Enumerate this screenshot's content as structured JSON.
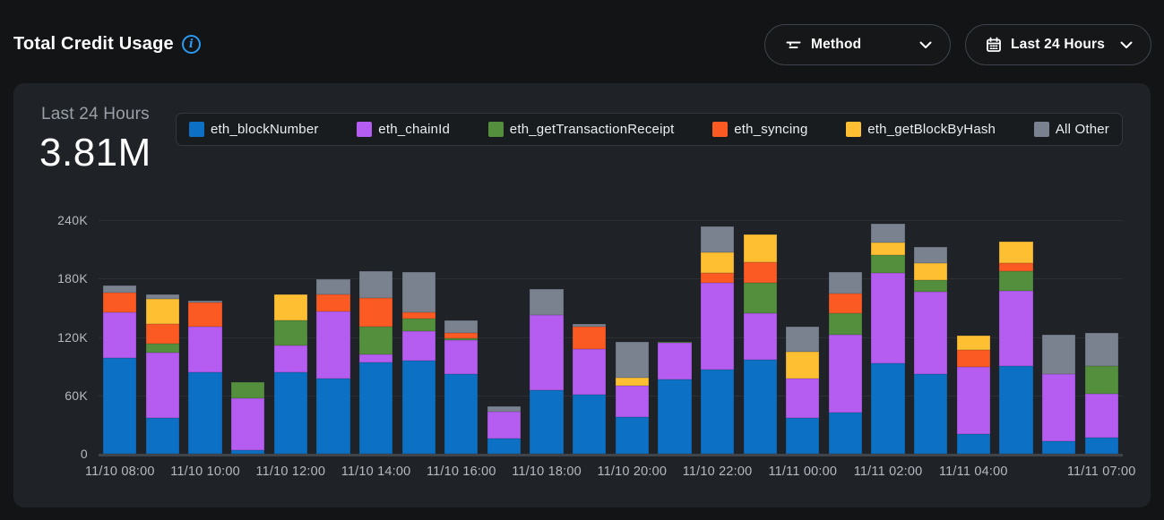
{
  "header": {
    "title": "Total Credit Usage",
    "info_icon": "info-circle-icon",
    "method_filter": {
      "label": "Method",
      "icon": "filter-icon"
    },
    "time_range": {
      "label": "Last 24 Hours",
      "icon": "calendar-icon"
    }
  },
  "card": {
    "period_label": "Last 24 Hours",
    "total_value": "3.81M"
  },
  "colors": {
    "page_background": "#121416",
    "card_background": "#1f2226",
    "accent_info": "#2b9af0",
    "axis_text": "#b6bac0",
    "gridline": "#2c3035"
  },
  "chart_data": {
    "type": "bar",
    "stacked": true,
    "title": "Total Credit Usage - Last 24 Hours",
    "unit": "credits (thousands)",
    "ylim": [
      0,
      240
    ],
    "grid": true,
    "legend_position": "top",
    "yticks": [
      {
        "value": 240,
        "label": "240K"
      },
      {
        "value": 180,
        "label": "180K"
      },
      {
        "value": 120,
        "label": "120K"
      },
      {
        "value": 60,
        "label": "60K"
      },
      {
        "value": 0,
        "label": "0"
      }
    ],
    "x": [
      "11/10 08:00",
      "11/10 09:00",
      "11/10 10:00",
      "11/10 11:00",
      "11/10 12:00",
      "11/10 13:00",
      "11/10 14:00",
      "11/10 15:00",
      "11/10 16:00",
      "11/10 17:00",
      "11/10 18:00",
      "11/10 19:00",
      "11/10 20:00",
      "11/10 21:00",
      "11/10 22:00",
      "11/10 23:00",
      "11/11 00:00",
      "11/11 01:00",
      "11/11 02:00",
      "11/11 03:00",
      "11/11 04:00",
      "11/11 05:00",
      "11/11 06:00",
      "11/11 07:00"
    ],
    "x_ticks": [
      {
        "index": 0,
        "label": "11/10 08:00"
      },
      {
        "index": 2,
        "label": "11/10 10:00"
      },
      {
        "index": 4,
        "label": "11/10 12:00"
      },
      {
        "index": 6,
        "label": "11/10 14:00"
      },
      {
        "index": 8,
        "label": "11/10 16:00"
      },
      {
        "index": 10,
        "label": "11/10 18:00"
      },
      {
        "index": 12,
        "label": "11/10 20:00"
      },
      {
        "index": 14,
        "label": "11/10 22:00"
      },
      {
        "index": 16,
        "label": "11/11 00:00"
      },
      {
        "index": 18,
        "label": "11/11 02:00"
      },
      {
        "index": 20,
        "label": "11/11 04:00"
      },
      {
        "index": 23,
        "label": "11/11 07:00"
      }
    ],
    "series": [
      {
        "name": "eth_blockNumber",
        "color": "#0C70C4",
        "values": [
          98,
          37,
          84,
          4,
          84,
          77,
          94,
          96,
          82,
          16,
          65,
          61,
          38,
          76,
          86,
          97,
          37,
          42,
          93,
          82,
          20,
          90,
          13,
          17
        ]
      },
      {
        "name": "eth_chainId",
        "color": "#B55DF0",
        "values": [
          47,
          67,
          47,
          53,
          27,
          69,
          8,
          30,
          35,
          27,
          78,
          47,
          32,
          38,
          90,
          47,
          40,
          80,
          93,
          84,
          69,
          77,
          69,
          45
        ]
      },
      {
        "name": "eth_getTransactionReceipt",
        "color": "#548F3E",
        "values": [
          0,
          9,
          0,
          17,
          26,
          0,
          29,
          13,
          2,
          0,
          0,
          0,
          0,
          1,
          0,
          32,
          0,
          22,
          18,
          12,
          0,
          21,
          0,
          28
        ]
      },
      {
        "name": "eth_syncing",
        "color": "#FB5A23",
        "values": [
          21,
          20,
          24,
          0,
          0,
          18,
          29,
          6,
          5,
          0,
          0,
          23,
          0,
          0,
          10,
          21,
          0,
          21,
          0,
          0,
          18,
          8,
          0,
          0
        ]
      },
      {
        "name": "eth_getBlockByHash",
        "color": "#FEBF32",
        "values": [
          0,
          26,
          0,
          0,
          27,
          0,
          0,
          0,
          0,
          0,
          0,
          0,
          8,
          0,
          21,
          28,
          28,
          0,
          13,
          18,
          14,
          22,
          0,
          0
        ]
      },
      {
        "name": "All Other",
        "color": "#7A8290",
        "values": [
          7,
          5,
          2,
          0,
          0,
          15,
          28,
          42,
          13,
          6,
          26,
          2,
          37,
          0,
          27,
          0,
          26,
          22,
          19,
          16,
          0,
          0,
          40,
          34
        ]
      }
    ]
  }
}
